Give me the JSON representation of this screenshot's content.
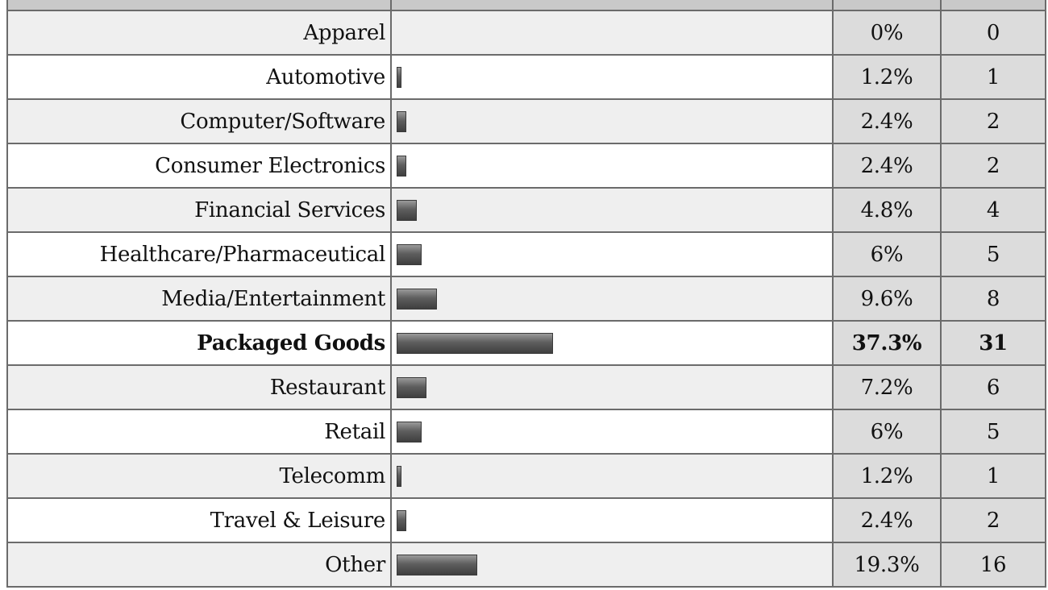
{
  "chart_data": {
    "type": "table",
    "categories": [
      "Apparel",
      "Automotive",
      "Computer/Software",
      "Consumer Electronics",
      "Financial Services",
      "Healthcare/Pharmaceutical",
      "Media/Entertainment",
      "Packaged Goods",
      "Restaurant",
      "Retail",
      "Telecomm",
      "Travel & Leisure",
      "Other"
    ],
    "percent_labels": [
      "0%",
      "1.2%",
      "2.4%",
      "2.4%",
      "4.8%",
      "6%",
      "9.6%",
      "37.3%",
      "7.2%",
      "6%",
      "1.2%",
      "2.4%",
      "19.3%"
    ],
    "percent_values": [
      0,
      1.2,
      2.4,
      2.4,
      4.8,
      6,
      9.6,
      37.3,
      7.2,
      6,
      1.2,
      2.4,
      19.3
    ],
    "counts": [
      "0",
      "1",
      "2",
      "2",
      "4",
      "5",
      "8",
      "31",
      "6",
      "5",
      "1",
      "2",
      "16"
    ],
    "highlight_category": "Packaged Goods",
    "bar_color": "#555555",
    "bar_scale_max_percent": 100
  }
}
